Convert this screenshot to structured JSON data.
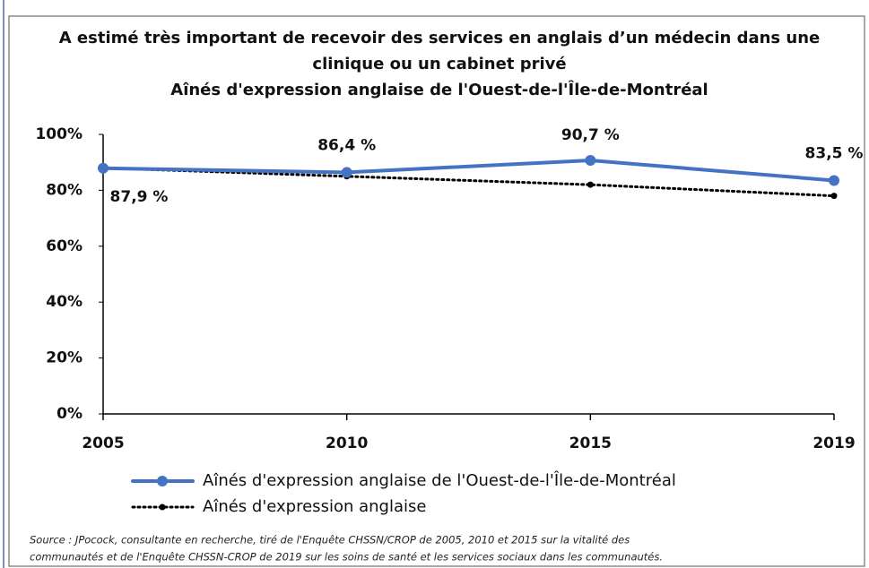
{
  "chart_data": {
    "type": "line",
    "title": [
      "A estimé très important de recevoir des services en anglais  d’un médecin dans une",
      "clinique  ou un cabinet privé",
      "Aînés d'expression anglaise de l'Ouest-de-l'Île-de-Montréal"
    ],
    "categories": [
      "2005",
      "2010",
      "2015",
      "2019"
    ],
    "series": [
      {
        "name": "Aînés d'expression anglaise de l'Ouest-de-l'Île-de-Montréal",
        "color": "#4472c4",
        "style": "solid",
        "values": [
          87.9,
          86.4,
          90.7,
          83.5
        ],
        "value_labels": [
          "87,9 %",
          "86,4 %",
          "90,7 %",
          "83,5 %"
        ]
      },
      {
        "name": "Aînés d'expression anglaise",
        "color": "#000000",
        "style": "dotted",
        "values": [
          88,
          85,
          82,
          78
        ]
      }
    ],
    "ylim": [
      0,
      100
    ],
    "yticks": [
      {
        "value": 0,
        "label": "0%"
      },
      {
        "value": 20,
        "label": "20%"
      },
      {
        "value": 40,
        "label": "40%"
      },
      {
        "value": 60,
        "label": "60%"
      },
      {
        "value": 80,
        "label": "80%"
      },
      {
        "value": 100,
        "label": "100%"
      }
    ],
    "source": [
      "Source : JPocock, consultante en recherche, tiré de l'Enquête CHSSN/CROP de 2005, 2010 et 2015 sur la vitalité des",
      "communautés et de l'Enquête CHSSN-CROP de 2019 sur les soins de santé et les services sociaux dans les communautés."
    ]
  }
}
